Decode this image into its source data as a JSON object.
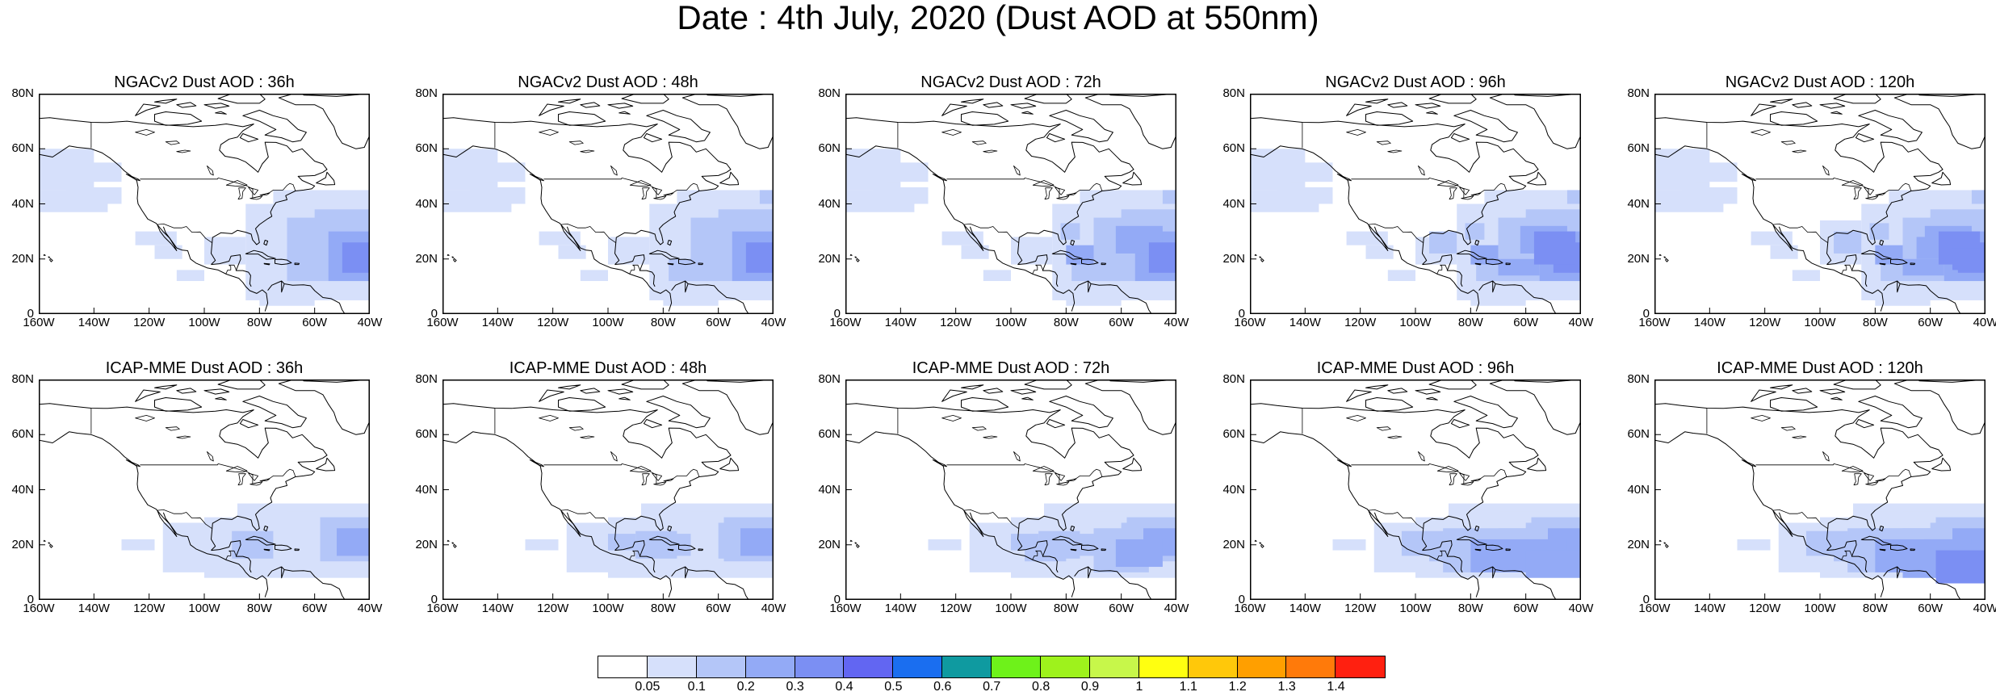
{
  "title": "Date : 4th July, 2020 (Dust AOD at 550nm)",
  "panels": [
    {
      "title": "NGACv2 Dust AOD : 36h"
    },
    {
      "title": "NGACv2 Dust AOD : 48h"
    },
    {
      "title": "NGACv2 Dust AOD : 72h"
    },
    {
      "title": "NGACv2 Dust AOD : 96h"
    },
    {
      "title": "NGACv2 Dust AOD : 120h"
    },
    {
      "title": "ICAP-MME Dust AOD : 36h"
    },
    {
      "title": "ICAP-MME Dust AOD : 48h"
    },
    {
      "title": "ICAP-MME Dust AOD : 72h"
    },
    {
      "title": "ICAP-MME Dust AOD : 96h"
    },
    {
      "title": "ICAP-MME Dust AOD : 120h"
    }
  ],
  "y_ticks": [
    "80N",
    "60N",
    "40N",
    "20N",
    "0"
  ],
  "x_ticks": [
    "160W",
    "140W",
    "120W",
    "100W",
    "80W",
    "60W",
    "40W"
  ],
  "colorbar": {
    "labels": [
      "0.05",
      "0.1",
      "0.2",
      "0.3",
      "0.4",
      "0.5",
      "0.6",
      "0.7",
      "0.8",
      "0.9",
      "1",
      "1.1",
      "1.2",
      "1.3",
      "1.4"
    ],
    "colors": [
      "#ffffff",
      "#d6e0fb",
      "#b4c6f8",
      "#93aaf6",
      "#7b8ff3",
      "#6266f2",
      "#1a6ef0",
      "#0f9aa0",
      "#6ef21a",
      "#9ef21c",
      "#c7f74a",
      "#ffff10",
      "#ffc80a",
      "#ff9f00",
      "#ff7a0a",
      "#ff2010"
    ]
  },
  "dust_colors": {
    "level1": "#d6e0fb",
    "level2": "#b4c6f8",
    "level3": "#93aaf6",
    "level4": "#7b8ff3"
  }
}
